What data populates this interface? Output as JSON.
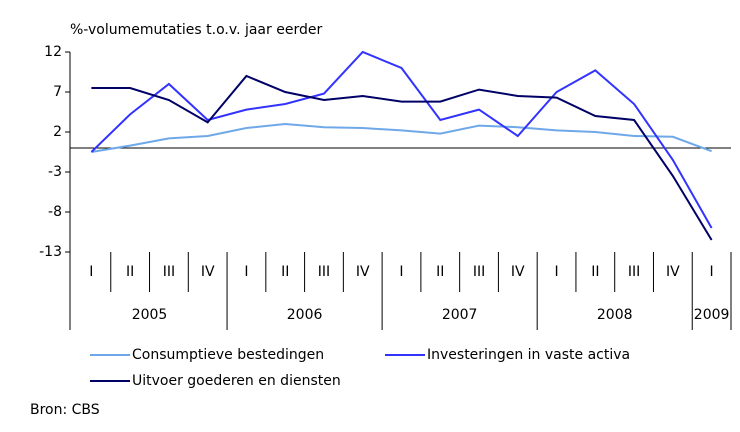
{
  "chart_data": {
    "type": "line",
    "y_axis_label": "%-volumemutaties t.o.v. jaar eerder",
    "categories": [
      "I",
      "II",
      "III",
      "IV",
      "I",
      "II",
      "III",
      "IV",
      "I",
      "II",
      "III",
      "IV",
      "I",
      "II",
      "III",
      "IV",
      "I"
    ],
    "groups": [
      "2005",
      "2006",
      "2007",
      "2008",
      "2009"
    ],
    "ylim": [
      -13,
      12
    ],
    "yticks": [
      12,
      7,
      2,
      -3,
      -8,
      -13
    ],
    "series": [
      {
        "name": "Consumptieve bestedingen",
        "color": "#6fa8e8",
        "values": [
          -0.5,
          0.3,
          1.2,
          1.5,
          2.5,
          3.0,
          2.6,
          2.5,
          2.2,
          1.8,
          2.8,
          2.6,
          2.2,
          2.0,
          1.5,
          1.4,
          -0.4
        ]
      },
      {
        "name": "Investeringen in vaste activa",
        "color": "#3333ff",
        "values": [
          -0.5,
          4.2,
          8,
          3.5,
          4.8,
          5.5,
          6.8,
          12,
          10,
          3.5,
          4.8,
          1.5,
          7,
          9.7,
          5.5,
          -1.5,
          -10
        ]
      },
      {
        "name": "Uitvoer goederen en diensten",
        "color": "#000066",
        "values": [
          7.5,
          7.5,
          6,
          3.2,
          9,
          7,
          6,
          6.5,
          5.8,
          5.8,
          7.3,
          6.5,
          6.3,
          4,
          3.5,
          -3.5,
          -11.5
        ]
      }
    ],
    "source": "Bron: CBS"
  }
}
